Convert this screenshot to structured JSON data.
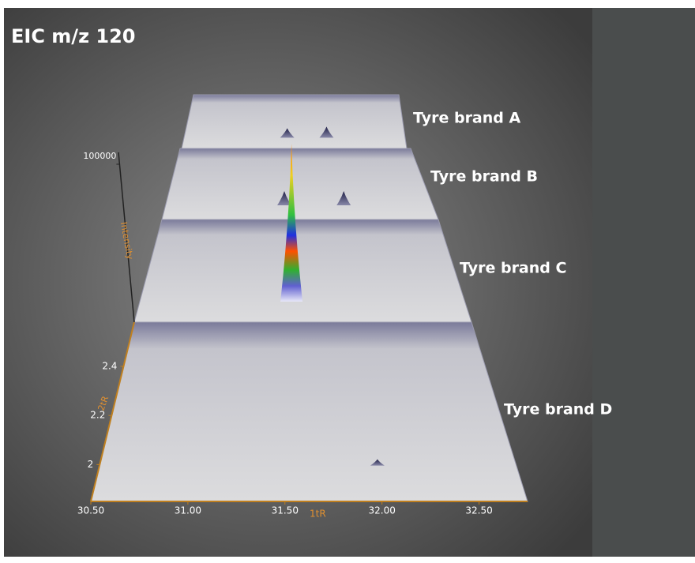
{
  "chart_data": {
    "type": "surface3d",
    "title": "EIC m/z 120",
    "xlabel": "1tR",
    "ylabel": "2tR",
    "zlabel": "Intensity",
    "xlim": [
      30.5,
      32.75
    ],
    "xticks": [
      {
        "value": 30.5,
        "label": "30.50"
      },
      {
        "value": 31,
        "label": "31.00"
      },
      {
        "value": 31.5,
        "label": "31.50"
      },
      {
        "value": 32,
        "label": "32.00"
      },
      {
        "value": 32.5,
        "label": "32.50"
      }
    ],
    "ylim": [
      1.85,
      2.58
    ],
    "yticks": [
      2,
      2.2,
      2.4
    ],
    "zlim": [
      0,
      100000
    ],
    "zticks": [
      100000
    ],
    "series": [
      {
        "name": "Tyre brand A",
        "x": [
          31.55,
          31.95
        ],
        "values": [
          6000,
          7000
        ]
      },
      {
        "name": "Tyre brand B",
        "x": [
          31.5,
          32.0
        ],
        "values": [
          9000,
          9000
        ]
      },
      {
        "name": "Tyre brand C",
        "x": [
          31.55
        ],
        "values": [
          100000
        ]
      },
      {
        "name": "Tyre brand D",
        "x": [
          32.0
        ],
        "values": [
          4000
        ]
      }
    ]
  }
}
